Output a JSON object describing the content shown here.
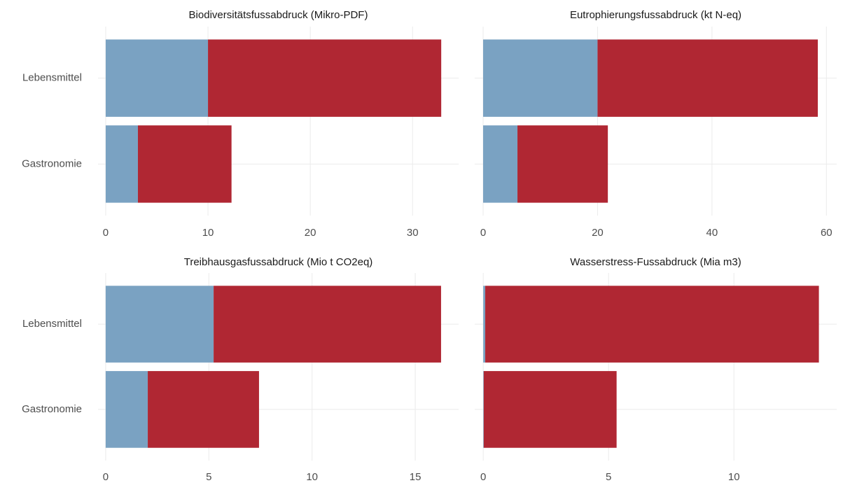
{
  "chart_data": [
    {
      "type": "bar",
      "title": "Biodiversitätsfussabdruck (Mikro-PDF)",
      "categories": [
        "Lebensmittel",
        "Gastronomie"
      ],
      "series": [
        {
          "color": "#7aa2c2",
          "values": [
            10,
            3.15
          ]
        },
        {
          "color": "#b02733",
          "values": [
            22.8,
            9.15
          ]
        }
      ],
      "xlim": [
        -0.75,
        34.5
      ],
      "xticks": [
        0,
        10,
        20,
        30
      ],
      "grid": true
    },
    {
      "type": "bar",
      "title": "Eutrophierungsfussabdruck (kt N-eq)",
      "series": [
        {
          "color": "#7aa2c2",
          "values": [
            20,
            6
          ]
        },
        {
          "color": "#b02733",
          "values": [
            38.5,
            15.8
          ]
        }
      ],
      "xlim": [
        -1.47,
        61.8
      ],
      "xticks": [
        0,
        20,
        40,
        60
      ],
      "grid": true
    },
    {
      "type": "bar",
      "title": "Treibhausgasfussabdruck (Mio t CO2eq)",
      "categories": [
        "Lebensmittel",
        "Gastronomie"
      ],
      "series": [
        {
          "color": "#7aa2c2",
          "values": [
            5.23,
            2.04
          ]
        },
        {
          "color": "#b02733",
          "values": [
            11.02,
            5.39
          ]
        }
      ],
      "xlim": [
        -0.37,
        17.1
      ],
      "xticks": [
        0,
        5,
        10,
        15
      ],
      "grid": true
    },
    {
      "type": "bar",
      "title": "Wasserstress-Fussabdruck (Mia m3)",
      "series": [
        {
          "color": "#7aa2c2",
          "values": [
            0.08,
            0.02
          ]
        },
        {
          "color": "#b02733",
          "values": [
            13.31,
            5.3
          ]
        }
      ],
      "xlim": [
        -0.34,
        14.1
      ],
      "xticks": [
        0,
        5,
        10
      ],
      "grid": true
    }
  ]
}
